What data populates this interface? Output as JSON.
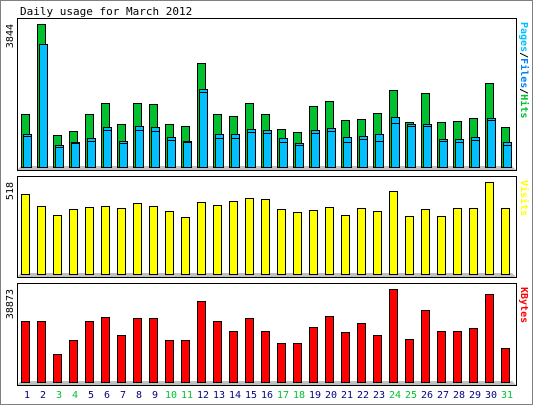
{
  "chart_data": {
    "title": "Daily usage for March 2012",
    "type": "bar",
    "categories": [
      "1",
      "2",
      "3",
      "4",
      "5",
      "6",
      "7",
      "8",
      "9",
      "10",
      "11",
      "12",
      "13",
      "14",
      "15",
      "16",
      "17",
      "18",
      "19",
      "20",
      "21",
      "22",
      "23",
      "24",
      "25",
      "26",
      "27",
      "28",
      "29",
      "30",
      "31"
    ],
    "weekend_days": [
      "3",
      "4",
      "10",
      "11",
      "17",
      "18",
      "24",
      "25",
      "31"
    ],
    "colors": {
      "background": "#ffffff",
      "frame": "#000000",
      "axis_fill": "#c0c0c0",
      "pages": "#00c030",
      "files": "#00c0ff",
      "hits": "#00c030",
      "visits": "#ffff00",
      "kbytes": "#ff0000",
      "weekday_label": "#000080",
      "weekend_label": "#00c030"
    },
    "panels": [
      {
        "id": "hits",
        "max_label": "3844",
        "legend": [
          {
            "text": "Pages",
            "color": "#00c0ff"
          },
          {
            "text": "/",
            "color": "#000000"
          },
          {
            "text": "Files",
            "color": "#0080ff"
          },
          {
            "text": "/",
            "color": "#000000"
          },
          {
            "text": "Hits",
            "color": "#00c030"
          }
        ],
        "series": [
          {
            "name": "Hits",
            "color": "#00c030",
            "values": [
              1415,
              3844,
              868,
              969,
              1438,
              1726,
              1145,
              1708,
              1703,
              1158,
              1115,
              2789,
              1436,
              1384,
              1711,
              1437,
              1020,
              938,
              1646,
              1766,
              1255,
              1296,
              1457,
              2063,
              1212,
              1988,
              1200,
              1225,
              1314,
              2262,
              1084
            ]
          },
          {
            "name": "Files",
            "color": "#00c0ff",
            "values": [
              900,
              3300,
              600,
              680,
              780,
              1080,
              700,
              1100,
              1070,
              800,
              700,
              2100,
              880,
              880,
              1030,
              1000,
              770,
              650,
              1000,
              1050,
              800,
              820,
              900,
              1350,
              1150,
              1150,
              760,
              740,
              800,
              1330,
              660
            ]
          },
          {
            "name": "Pages",
            "color": "#00c0ff",
            "values": [
              820,
              3300,
              540,
              640,
              700,
              990,
              640,
              1000,
              980,
              720,
              660,
              2020,
              780,
              790,
              950,
              910,
              680,
              580,
              920,
              960,
              680,
              740,
              700,
              1180,
              1110,
              1110,
              700,
              680,
              720,
              1270,
              590
            ]
          }
        ]
      },
      {
        "id": "visits",
        "max_label": "518",
        "legend": [
          {
            "text": "Visits",
            "color": "#ffff00"
          }
        ],
        "series": [
          {
            "name": "Visits",
            "color": "#ffff00",
            "values": [
              450,
              382,
              331,
              367,
              380,
              384,
              373,
              400,
              381,
              353,
              320,
              404,
              387,
              412,
              428,
              425,
              366,
              348,
              362,
              380,
              331,
              372,
              354,
              468,
              324,
              368,
              327,
              370,
              369,
              518,
              369
            ]
          }
        ]
      },
      {
        "id": "kbytes",
        "max_label": "38873",
        "legend": [
          {
            "text": "KBytes",
            "color": "#ff0000"
          }
        ],
        "series": [
          {
            "name": "KBytes",
            "color": "#ff0000",
            "values": [
              25610,
              25610,
              11780,
              17430,
              25610,
              27370,
              19830,
              26850,
              26580,
              17670,
              17670,
              33940,
              25610,
              21120,
              26850,
              21380,
              16330,
              16330,
              23080,
              27630,
              20760,
              24640,
              19580,
              38870,
              17840,
              30060,
              21120,
              21120,
              22500,
              36700,
              14390
            ]
          }
        ]
      }
    ]
  }
}
